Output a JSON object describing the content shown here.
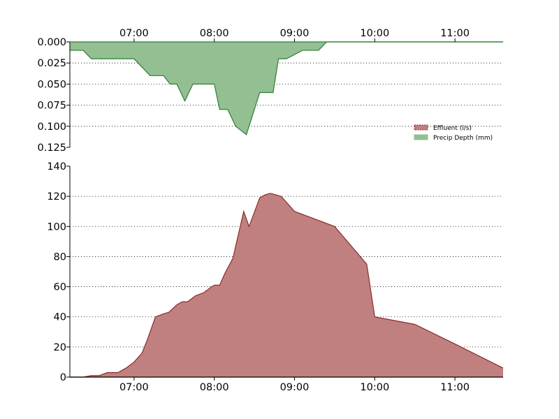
{
  "chart_data": [
    {
      "type": "area",
      "orientation": "inverted-y",
      "x_axis_position": "top",
      "title": "",
      "xlabel": "",
      "ylabel": "",
      "xlim": [
        "06:12",
        "11:36"
      ],
      "ylim": [
        0.125,
        0.0
      ],
      "x_tick_labels": [
        "07:00",
        "08:00",
        "09:00",
        "10:00",
        "11:00"
      ],
      "y_tick_labels": [
        "0.000",
        "0.025",
        "0.050",
        "0.075",
        "0.100",
        "0.125"
      ],
      "grid": "horizontal dotted",
      "series": [
        {
          "name": "Precip Depth (mm)",
          "color": "#93bf93",
          "edge_color": "#2e7d32",
          "x": [
            "06:12",
            "06:22",
            "06:28",
            "06:50",
            "07:00",
            "07:12",
            "07:16",
            "07:22",
            "07:27",
            "07:32",
            "07:38",
            "07:44",
            "07:50",
            "07:54",
            "07:58",
            "08:00",
            "08:04",
            "08:10",
            "08:16",
            "08:24",
            "08:26",
            "08:34",
            "08:36",
            "08:44",
            "08:48",
            "08:54",
            "09:06",
            "09:12",
            "09:18",
            "09:24",
            "11:36"
          ],
          "values": [
            0.01,
            0.01,
            0.02,
            0.02,
            0.02,
            0.04,
            0.04,
            0.04,
            0.05,
            0.05,
            0.07,
            0.05,
            0.05,
            0.05,
            0.05,
            0.05,
            0.08,
            0.08,
            0.1,
            0.11,
            0.1,
            0.06,
            0.06,
            0.06,
            0.02,
            0.02,
            0.01,
            0.01,
            0.01,
            0.0,
            0.0
          ]
        }
      ]
    },
    {
      "type": "area",
      "title": "",
      "xlabel": "",
      "ylabel": "",
      "xlim": [
        "06:12",
        "11:36"
      ],
      "ylim": [
        0,
        140
      ],
      "x_tick_labels": [
        "07:00",
        "08:00",
        "09:00",
        "10:00",
        "11:00"
      ],
      "y_tick_labels": [
        "0",
        "20",
        "40",
        "60",
        "80",
        "100",
        "120",
        "140"
      ],
      "grid": "horizontal dotted",
      "series": [
        {
          "name": "Effluent (l/s)",
          "color": "#c08080",
          "edge_color": "#8b2a2a",
          "x": [
            "06:12",
            "06:22",
            "06:28",
            "06:34",
            "06:40",
            "06:48",
            "06:54",
            "07:00",
            "07:06",
            "07:10",
            "07:16",
            "07:22",
            "07:26",
            "07:32",
            "07:36",
            "07:40",
            "07:46",
            "07:52",
            "07:58",
            "08:00",
            "08:04",
            "08:08",
            "08:14",
            "08:16",
            "08:22",
            "08:26",
            "08:34",
            "08:38",
            "08:42",
            "08:50",
            "09:00",
            "09:30",
            "09:54",
            "10:00",
            "10:30",
            "11:00",
            "11:36"
          ],
          "values": [
            0,
            0,
            1,
            1,
            3,
            3,
            6,
            10,
            16,
            25,
            40,
            42,
            43,
            48,
            50,
            50,
            54,
            56,
            60,
            61,
            61,
            69,
            79,
            87,
            110,
            100,
            119,
            121,
            122,
            120,
            110,
            100,
            75,
            40,
            35,
            22,
            6
          ]
        }
      ]
    }
  ],
  "legend": {
    "placement": "right, between panels",
    "items": [
      {
        "label": "Effluent (l/s)",
        "color": "#c08080",
        "edge_color": "#8b2a2a"
      },
      {
        "label": "Precip Depth (mm)",
        "color": "#93bf93",
        "edge_color": "#93bf93"
      }
    ]
  }
}
